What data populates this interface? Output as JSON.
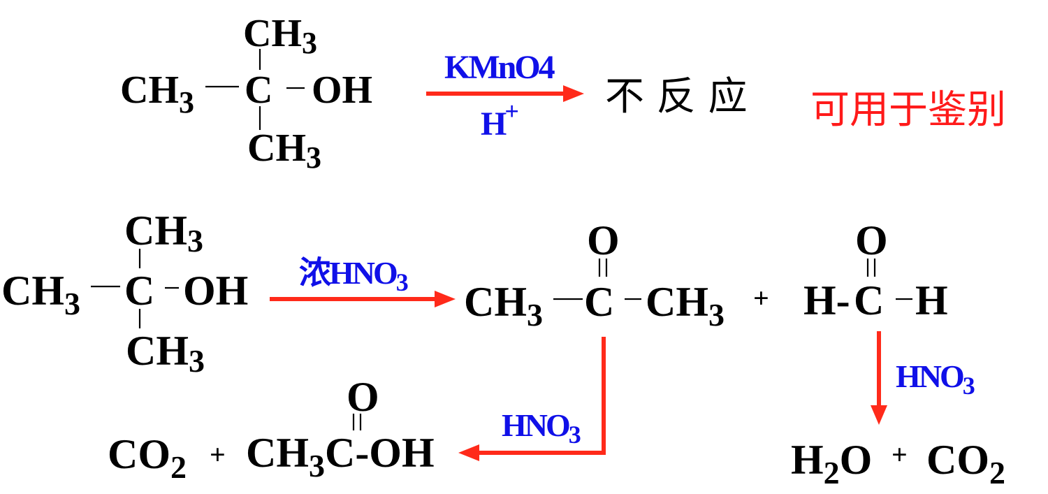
{
  "reaction1": {
    "reactant": {
      "top": "CH",
      "top_sub": "3",
      "left": "CH",
      "left_sub": "3",
      "center": "C",
      "right": "OH",
      "bottom": "CH",
      "bottom_sub": "3"
    },
    "reagent_top": "KMnO4",
    "reagent_bottom": "H",
    "reagent_bottom_sup": "+",
    "result": "不 反 应",
    "note": "可用于鉴别"
  },
  "reaction2": {
    "reactant": {
      "top": "CH",
      "top_sub": "3",
      "left": "CH",
      "left_sub": "3",
      "center": "C",
      "right": "OH",
      "bottom": "CH",
      "bottom_sub": "3"
    },
    "reagent": "浓HNO",
    "reagent_sub": "3",
    "ketone": {
      "o": "O",
      "left": "CH",
      "left_sub": "3",
      "center": "C",
      "right": "CH",
      "right_sub": "3"
    },
    "plus": "+",
    "aldehyde": {
      "o": "O",
      "left": "H-",
      "center": "C",
      "right": "H"
    }
  },
  "branch_ketone": {
    "reagent": "HNO",
    "reagent_sub": "3",
    "co2": "CO",
    "co2_sub": "2",
    "plus": "+",
    "acid": {
      "o": "O",
      "ch": "CH",
      "ch_sub": "3",
      "rest": "C-OH"
    }
  },
  "branch_aldehyde": {
    "reagent": "HNO",
    "reagent_sub": "3",
    "h": "H",
    "h_sub": "2",
    "o": "O",
    "plus": "+",
    "co2": "CO",
    "co2_sub": "2"
  },
  "colors": {
    "arrow": "#ff2a1a",
    "reagent": "#1010e8",
    "note": "#ff1a1a"
  }
}
